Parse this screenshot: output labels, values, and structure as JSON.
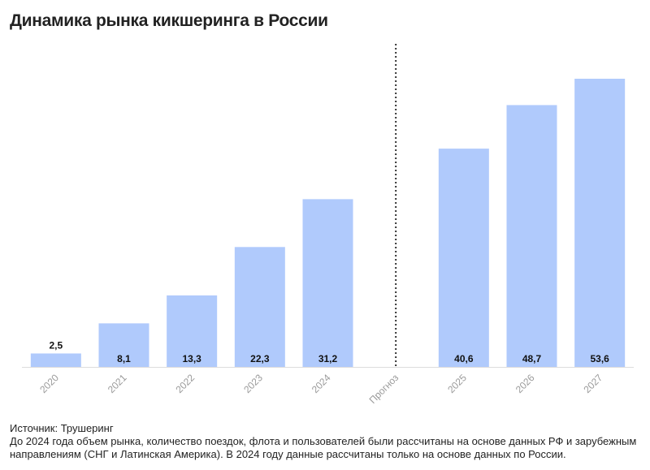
{
  "title": "Динамика рынка кикшеринга в России",
  "chart_data": {
    "type": "bar",
    "title": "Динамика рынка кикшеринга в России",
    "xlabel": "",
    "ylabel": "",
    "ylim": [
      0,
      55
    ],
    "grid": false,
    "categories": [
      "2020",
      "2021",
      "2022",
      "2023",
      "2024",
      "Прогноз",
      "2025",
      "2026",
      "2027"
    ],
    "values": [
      2.5,
      8.1,
      13.3,
      22.3,
      31.2,
      null,
      40.6,
      48.7,
      53.6
    ],
    "data_labels": [
      "2,5",
      "8,1",
      "13,3",
      "22,3",
      "31,2",
      "",
      "40,6",
      "48,7",
      "53,6"
    ],
    "bar_color": "#b0cafc",
    "forecast_divider": "dotted vertical line at 'Прогноз'",
    "axis_label_color": "#9a9a9a"
  },
  "footer": {
    "source": "Источник: Трушеринг",
    "note": "До 2024 года объем рынка, количество поездок, флота и пользователей были рассчитаны на основе данных РФ и зарубежным направлениям (СНГ и Латинская Америка). В 2024 году данные рассчитаны только на основе данных по России."
  }
}
